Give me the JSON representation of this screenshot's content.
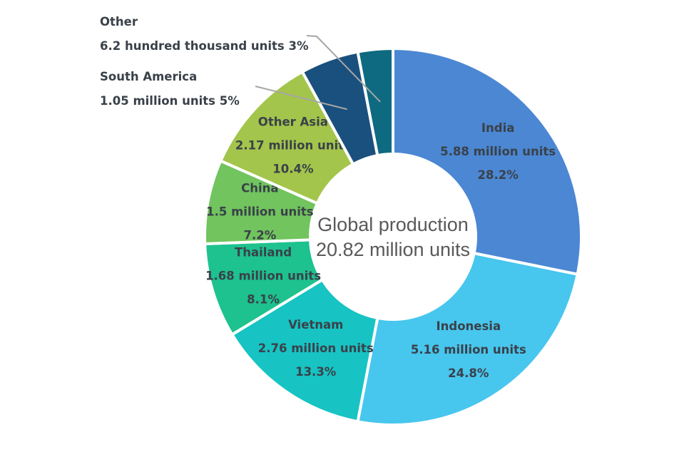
{
  "page": {
    "background": "#ffffff"
  },
  "chart_data": {
    "type": "pie",
    "subtype": "donut",
    "title": "",
    "center_label": {
      "line1": "Global production",
      "line2": "20.82 million units"
    },
    "total_million_units": 20.82,
    "start_angle_deg": 0,
    "direction": "clockwise",
    "inner_radius_ratio": 0.44,
    "legend_position": "none",
    "grid": false,
    "label_text_color": "#3a4149",
    "center_text_color": "#595959",
    "leader_line_color": "#a6a6a6",
    "slice_border_color": "#ffffff",
    "slices": [
      {
        "name": "India",
        "value_million_units": 5.88,
        "percent": 28.2,
        "units_label": "5.88 million units",
        "pct_label": "28.2%",
        "color": "#4b87d3",
        "label_outside": false
      },
      {
        "name": "Indonesia",
        "value_million_units": 5.16,
        "percent": 24.8,
        "units_label": "5.16 million units",
        "pct_label": "24.8%",
        "color": "#47c6ee",
        "label_outside": false
      },
      {
        "name": "Vietnam",
        "value_million_units": 2.76,
        "percent": 13.3,
        "units_label": "2.76 million units",
        "pct_label": "13.3%",
        "color": "#17c3c3",
        "label_outside": false
      },
      {
        "name": "Thailand",
        "value_million_units": 1.68,
        "percent": 8.1,
        "units_label": "1.68 million units",
        "pct_label": "8.1%",
        "color": "#1dc28e",
        "label_outside": false
      },
      {
        "name": "China",
        "value_million_units": 1.5,
        "percent": 7.2,
        "units_label": "1.5 million units",
        "pct_label": "7.2%",
        "color": "#71c45e",
        "label_outside": false
      },
      {
        "name": "Other Asia",
        "value_million_units": 2.17,
        "percent": 10.4,
        "units_label": "2.17 million units",
        "pct_label": "10.4%",
        "color": "#a3c54b",
        "label_outside": false
      },
      {
        "name": "South America",
        "value_million_units": 1.05,
        "percent": 5,
        "units_label": "1.05 million units",
        "pct_label": "5%",
        "color": "#1a507e",
        "label_outside": true
      },
      {
        "name": "Other",
        "value_million_units": 0.62,
        "percent": 3,
        "units_label": "6.2 hundred thousand units",
        "pct_label": "3%",
        "color": "#0e6a80",
        "label_outside": true
      }
    ]
  }
}
